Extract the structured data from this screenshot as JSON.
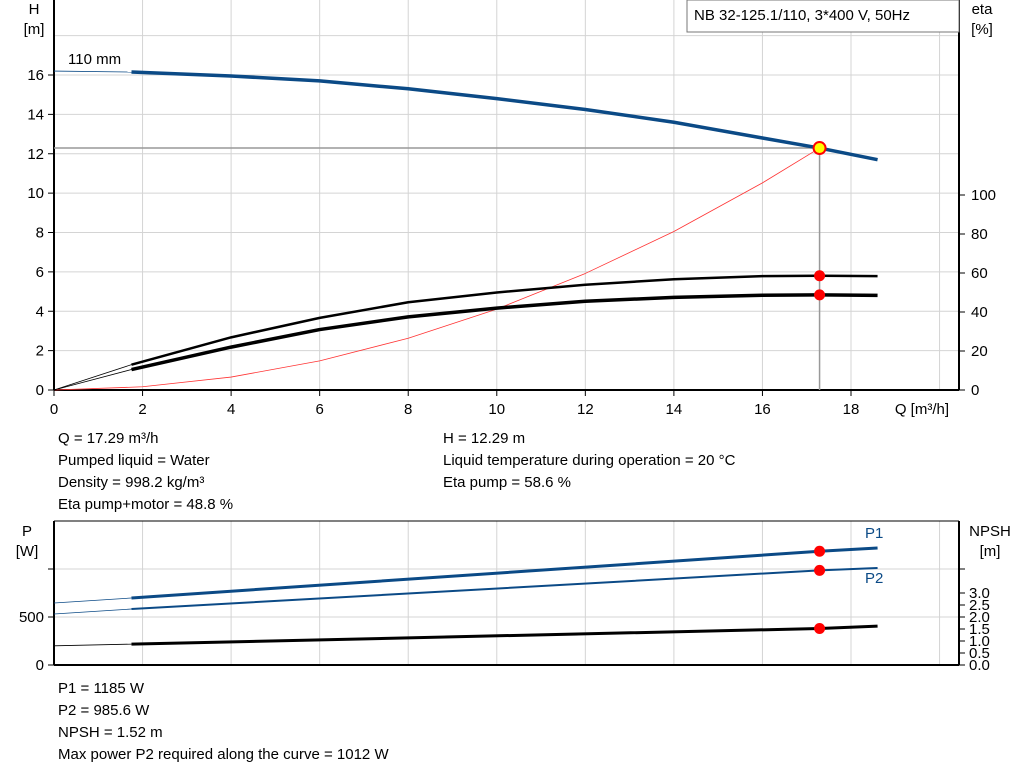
{
  "chart_data": [
    {
      "type": "line",
      "legend_box": "NB 32-125.1/110, 3*400 V, 50Hz",
      "xlabel": "Q [m³/h]",
      "ylabel_left": [
        "H",
        "[m]"
      ],
      "ylabel_right": [
        "eta",
        "[%]"
      ],
      "xlim": [
        0,
        20.4
      ],
      "ylim_left": [
        0,
        19.8
      ],
      "ylim_right": [
        0,
        200
      ],
      "x_ticks": [
        "0",
        "2",
        "4",
        "6",
        "8",
        "10",
        "12",
        "14",
        "16",
        "18"
      ],
      "y_ticks_left": [
        "0",
        "2",
        "4",
        "6",
        "8",
        "10",
        "12",
        "14",
        "16"
      ],
      "y_ticks_right": [
        "0",
        "20",
        "40",
        "60",
        "80",
        "100"
      ],
      "grid": true,
      "curve_label": "110 mm",
      "series": [
        {
          "axis": "left",
          "color": "#0b4a86",
          "x": [
            0,
            1.75,
            4,
            6,
            8,
            10,
            12,
            14,
            16,
            17.29,
            18.6
          ],
          "y": [
            16.2,
            16.15,
            15.95,
            15.7,
            15.3,
            14.8,
            14.25,
            13.6,
            12.8,
            12.29,
            11.7
          ]
        },
        {
          "axis": "right",
          "color": "#000000",
          "x": [
            0,
            1.75,
            4,
            6,
            8,
            10,
            12,
            14,
            16,
            17.29,
            18.6
          ],
          "y": [
            0,
            13,
            27,
            37,
            45,
            50,
            54,
            56.8,
            58.4,
            58.6,
            58.4
          ]
        },
        {
          "axis": "right",
          "color": "#000000",
          "x": [
            0,
            1.75,
            4,
            6,
            8,
            10,
            12,
            14,
            16,
            17.29,
            18.6
          ],
          "y": [
            0,
            10.5,
            22,
            31,
            37.5,
            42,
            45.5,
            47.5,
            48.6,
            48.8,
            48.5
          ]
        },
        {
          "axis": "left",
          "color": "#ff3333",
          "x": [
            0,
            2,
            4,
            6,
            8,
            10,
            12,
            14,
            16,
            17.29
          ],
          "y": [
            0,
            0.164,
            0.658,
            1.48,
            2.63,
            4.11,
            5.92,
            8.05,
            10.52,
            12.29
          ]
        }
      ],
      "operating_point": {
        "Q": 17.29,
        "H": 12.29,
        "eta_pump": 58.6,
        "eta_pump_motor": 48.8
      }
    },
    {
      "type": "line",
      "ylabel_left": [
        "P",
        "[W]"
      ],
      "ylabel_right": [
        "NPSH",
        "[m]"
      ],
      "ylim_left": [
        0,
        1500
      ],
      "y_ticks_left": [
        "0",
        "500"
      ],
      "y_ticks_right": [
        "0.0",
        "0.5",
        "1.0",
        "1.5",
        "2.0",
        "2.5",
        "3.0"
      ],
      "series": [
        {
          "name": "P1",
          "axis": "left",
          "color": "#0b4a86",
          "x": [
            0,
            1.75,
            17.29,
            18.6
          ],
          "y": [
            646,
            698,
            1185,
            1219
          ]
        },
        {
          "name": "P2",
          "axis": "left",
          "color": "#0b4a86",
          "x": [
            0,
            1.75,
            17.29,
            18.6
          ],
          "y": [
            531,
            583,
            985.6,
            1010
          ]
        },
        {
          "axis": "right",
          "color": "#000000",
          "x": [
            0,
            1.75,
            17.29,
            18.6
          ],
          "y": [
            0.8,
            0.87,
            1.52,
            1.62
          ]
        }
      ]
    }
  ],
  "info_top_left": [
    "Q = 17.29 m³/h",
    "Pumped liquid = Water",
    "Density = 998.2 kg/m³",
    "Eta pump+motor = 48.8 %"
  ],
  "info_top_right": [
    "H = 12.29 m",
    "Liquid temperature during operation = 20 °C",
    "Eta pump = 58.6 %"
  ],
  "info_bottom": [
    "P1 = 1185 W",
    "P2 = 985.6 W",
    "NPSH = 1.52 m",
    "Max power P2 required along the curve = 1012 W"
  ]
}
